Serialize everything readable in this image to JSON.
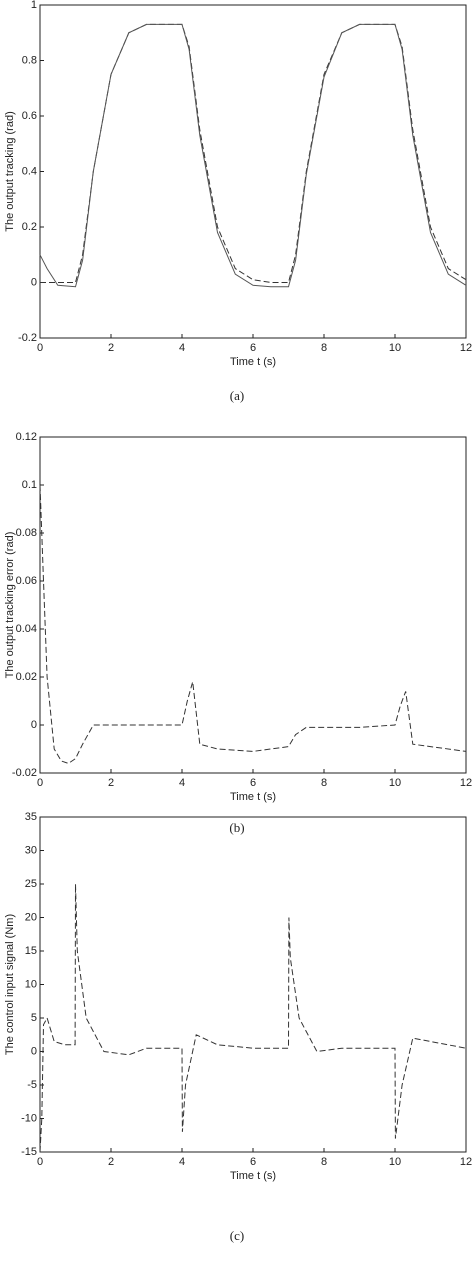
{
  "chart_data": [
    {
      "type": "line",
      "ylabel": "The output tracking (rad)",
      "xlabel": "Time t (s)",
      "caption": "(a)",
      "xlim": [
        0,
        12
      ],
      "ylim": [
        -0.2,
        1
      ],
      "xticks": [
        0,
        2,
        4,
        6,
        8,
        10,
        12
      ],
      "yticks": [
        -0.2,
        0,
        0.2,
        0.4,
        0.6,
        0.8,
        1
      ],
      "x": [
        0,
        0.2,
        0.5,
        1,
        1.2,
        1.5,
        2,
        2.5,
        3,
        3.5,
        4,
        4.2,
        4.5,
        5,
        5.5,
        6,
        6.5,
        7,
        7.2,
        7.5,
        8,
        8.5,
        9,
        9.5,
        10,
        10.2,
        10.5,
        11,
        11.5,
        12
      ],
      "series": [
        {
          "color": "#333333",
          "linestyle": "dashed",
          "values": [
            0,
            0,
            0,
            0,
            0.1,
            0.4,
            0.75,
            0.9,
            0.93,
            0.93,
            0.93,
            0.85,
            0.55,
            0.2,
            0.05,
            0.01,
            0,
            0,
            0.1,
            0.4,
            0.75,
            0.9,
            0.93,
            0.93,
            0.93,
            0.85,
            0.55,
            0.2,
            0.05,
            0.01
          ]
        },
        {
          "color": "#555555",
          "linestyle": "solid",
          "values": [
            0.1,
            0.05,
            -0.01,
            -0.015,
            0.08,
            0.4,
            0.75,
            0.9,
            0.93,
            0.93,
            0.93,
            0.84,
            0.53,
            0.18,
            0.03,
            -0.01,
            -0.015,
            -0.015,
            0.08,
            0.39,
            0.74,
            0.9,
            0.93,
            0.93,
            0.93,
            0.84,
            0.53,
            0.18,
            0.03,
            -0.01
          ]
        }
      ]
    },
    {
      "type": "line",
      "ylabel": "The output tracking error (rad)",
      "xlabel": "Time t (s)",
      "caption": "(b)",
      "xlim": [
        0,
        12
      ],
      "ylim": [
        -0.02,
        0.12
      ],
      "xticks": [
        0,
        2,
        4,
        6,
        8,
        10,
        12
      ],
      "yticks": [
        -0.02,
        0,
        0.02,
        0.04,
        0.06,
        0.08,
        0.1,
        0.12
      ],
      "x": [
        0,
        0.1,
        0.2,
        0.4,
        0.6,
        0.8,
        1,
        1.2,
        1.5,
        2,
        3,
        4,
        4.15,
        4.3,
        4.5,
        5,
        6,
        7,
        7.2,
        7.5,
        8,
        9,
        10,
        10.15,
        10.3,
        10.5,
        11,
        12
      ],
      "series": [
        {
          "color": "#333333",
          "linestyle": "dashed",
          "values": [
            0.1,
            0.06,
            0.02,
            -0.01,
            -0.015,
            -0.016,
            -0.014,
            -0.008,
            0,
            0,
            0,
            0,
            0.01,
            0.018,
            -0.008,
            -0.01,
            -0.011,
            -0.009,
            -0.004,
            -0.001,
            -0.001,
            -0.001,
            0,
            0.008,
            0.014,
            -0.008,
            -0.009,
            -0.011
          ]
        }
      ]
    },
    {
      "type": "line",
      "ylabel": "The control input signal (Nm)",
      "xlabel": "Time t (s)",
      "caption": "(c)",
      "xlim": [
        0,
        12
      ],
      "ylim": [
        -15,
        35
      ],
      "xticks": [
        0,
        2,
        4,
        6,
        8,
        10,
        12
      ],
      "yticks": [
        -15,
        -10,
        -5,
        0,
        5,
        10,
        15,
        20,
        25,
        30,
        35
      ],
      "x": [
        0,
        0.05,
        0.1,
        0.2,
        0.4,
        0.7,
        0.99,
        1,
        1.05,
        1.3,
        1.8,
        2.5,
        3,
        4,
        4.01,
        4.1,
        4.4,
        5,
        6,
        7,
        7.01,
        7.05,
        7.3,
        7.8,
        8.5,
        10,
        10.01,
        10.2,
        10.5,
        11,
        12
      ],
      "series": [
        {
          "color": "#333333",
          "linestyle": "dashed",
          "values": [
            -15,
            -10,
            4,
            5,
            1.5,
            1,
            1,
            25,
            15,
            5,
            0,
            -0.5,
            0.5,
            0.5,
            -12,
            -5,
            2.5,
            1,
            0.5,
            0.5,
            20,
            14,
            5,
            0,
            0.5,
            0.5,
            -13,
            -5,
            2,
            1.5,
            0.5
          ]
        }
      ]
    }
  ]
}
